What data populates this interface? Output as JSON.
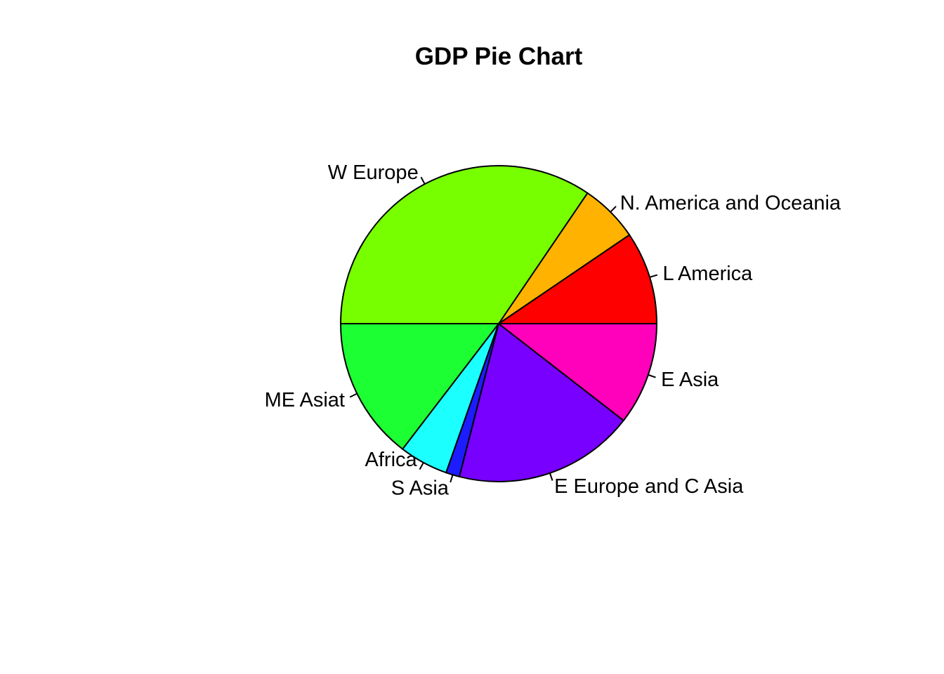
{
  "chart_data": {
    "type": "pie",
    "title": "GDP Pie Chart",
    "direction": "counterclockwise",
    "start": "3 o'clock",
    "slices": [
      {
        "label": "L America",
        "value": 9.5,
        "color": "#FF0000"
      },
      {
        "label": "N. America and Oceania",
        "value": 6.0,
        "color": "#FFB300"
      },
      {
        "label": "W Europe",
        "value": 34.5,
        "color": "#77FF00"
      },
      {
        "label": "ME Asiat",
        "value": 14.6,
        "color": "#1CFF33"
      },
      {
        "label": "Africa",
        "value": 5.0,
        "color": "#1CFFFF"
      },
      {
        "label": "S Asia",
        "value": 1.4,
        "color": "#1C1CFF"
      },
      {
        "label": "E Europe and C Asia",
        "value": 18.5,
        "color": "#7700FF"
      },
      {
        "label": "E Asia",
        "value": 10.5,
        "color": "#FF00BB"
      }
    ]
  }
}
